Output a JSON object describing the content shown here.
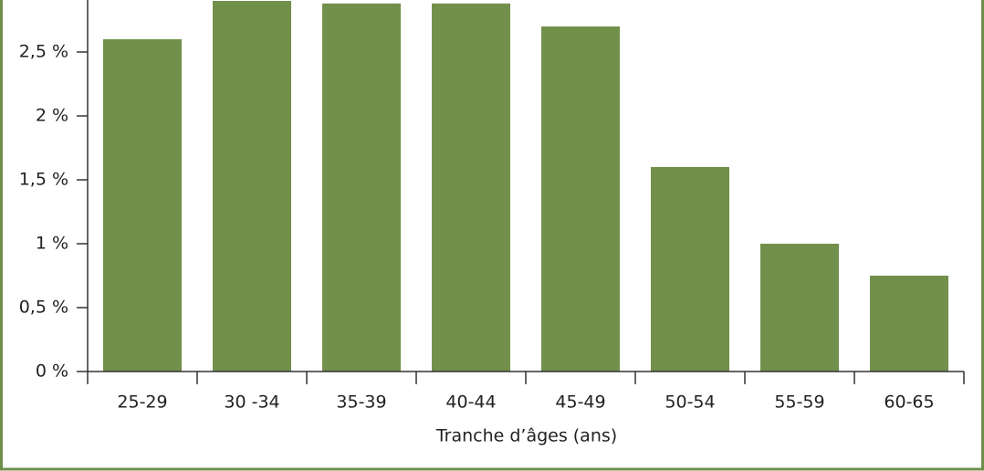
{
  "chart_data": {
    "type": "bar",
    "x_label": "Tranche d’âges (ans)",
    "categories": [
      "25-29",
      "30 -34",
      "35-39",
      "40-44",
      "45-49",
      "50-54",
      "55-59",
      "60-65"
    ],
    "values": [
      2.6,
      2.9,
      2.88,
      2.88,
      2.7,
      1.6,
      1.0,
      0.75
    ],
    "color": "#72904c",
    "ylim": [
      0,
      2.9
    ],
    "yticks": [
      {
        "value": 0,
        "label": "0 %"
      },
      {
        "value": 0.5,
        "label": "0,5 %"
      },
      {
        "value": 1,
        "label": "1 %"
      },
      {
        "value": 1.5,
        "label": "1,5 %"
      },
      {
        "value": 2,
        "label": "2 %"
      },
      {
        "value": 2.5,
        "label": "2,5 %"
      }
    ]
  }
}
